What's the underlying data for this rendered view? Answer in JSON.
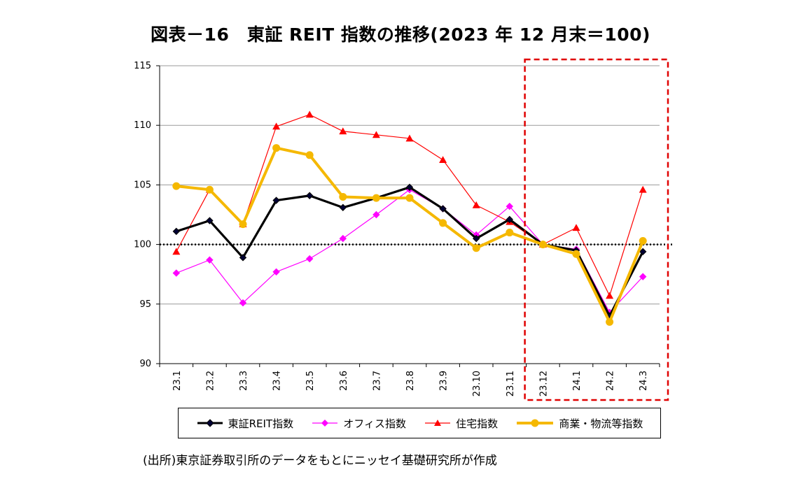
{
  "page": {
    "title": "図表－16　東証 REIT 指数の推移(2023 年 12 月末＝100)",
    "source": "(出所)東京証券取引所のデータをもとにニッセイ基礎研究所が作成"
  },
  "chart_data": {
    "type": "line",
    "title": "図表－16　東証 REIT 指数の推移(2023 年 12 月末＝100)",
    "xlabel": "",
    "ylabel": "",
    "ylim": [
      90,
      115
    ],
    "yticks": [
      90,
      95,
      100,
      105,
      110,
      115
    ],
    "grid": true,
    "baseline": 100,
    "highlight_range": [
      "23.12",
      "24.3"
    ],
    "categories": [
      "23.1",
      "23.2",
      "23.3",
      "23.4",
      "23.5",
      "23.6",
      "23.7",
      "23.8",
      "23.9",
      "23.10",
      "23.11",
      "23.12",
      "24.1",
      "24.2",
      "24.3"
    ],
    "series": [
      {
        "name": "東証REIT指数",
        "color": "#000000",
        "marker": "diamond",
        "values": [
          101.1,
          102.0,
          98.9,
          103.7,
          104.1,
          103.1,
          103.9,
          104.8,
          103.0,
          100.5,
          102.1,
          100.0,
          99.5,
          94.0,
          99.4
        ]
      },
      {
        "name": "オフィス指数",
        "color": "#ff00ff",
        "marker": "diamond",
        "values": [
          97.6,
          98.7,
          95.1,
          97.7,
          98.8,
          100.5,
          102.5,
          104.6,
          103.0,
          100.8,
          103.2,
          100.0,
          99.6,
          94.3,
          97.3
        ]
      },
      {
        "name": "住宅指数",
        "color": "#ff0000",
        "marker": "triangle",
        "values": [
          99.4,
          104.6,
          101.7,
          109.9,
          110.9,
          109.5,
          109.2,
          108.9,
          107.1,
          103.3,
          101.9,
          100.0,
          101.4,
          95.7,
          104.6
        ]
      },
      {
        "name": "商業・物流等指数",
        "color": "#f5b800",
        "marker": "circle",
        "values": [
          104.9,
          104.6,
          101.7,
          108.1,
          107.5,
          104.0,
          103.9,
          103.9,
          101.8,
          99.7,
          101.0,
          100.0,
          99.2,
          93.5,
          100.3
        ]
      }
    ]
  }
}
